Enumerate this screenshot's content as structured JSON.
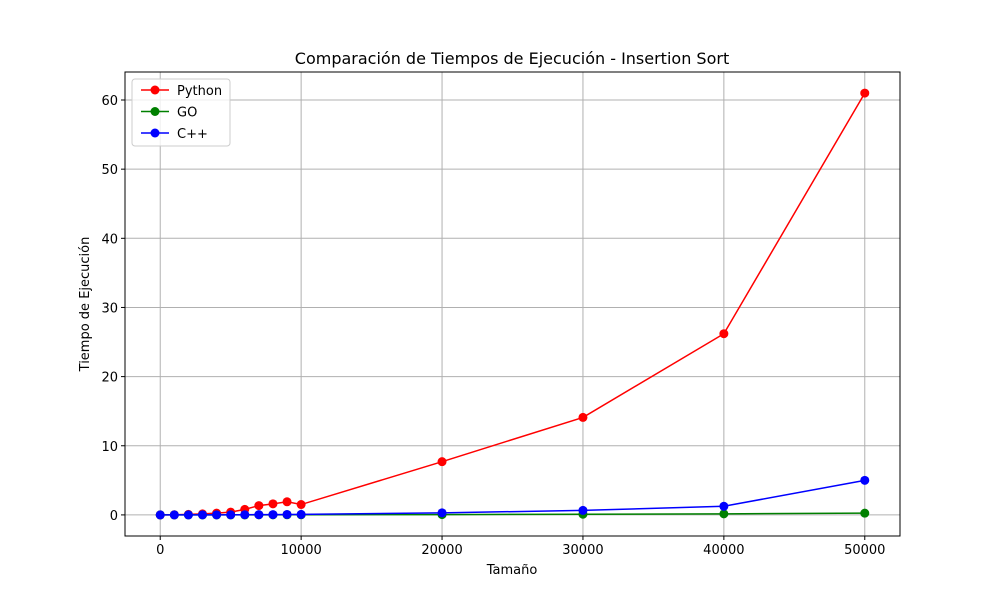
{
  "chart_data": {
    "type": "line",
    "title": "Comparación de Tiempos de Ejecución  - Insertion Sort",
    "xlabel": "Tamaño",
    "ylabel": "Tiempo de Ejecución",
    "xlim": [
      -2500,
      52500
    ],
    "ylim": [
      -3.05,
      64.05
    ],
    "xticks": [
      0,
      10000,
      20000,
      30000,
      40000,
      50000
    ],
    "yticks": [
      0,
      10,
      20,
      30,
      40,
      50,
      60
    ],
    "grid": true,
    "legend_position": "top-left",
    "x": [
      0,
      1000,
      2000,
      3000,
      4000,
      5000,
      6000,
      7000,
      8000,
      9000,
      10000,
      20000,
      30000,
      40000,
      50000
    ],
    "series": [
      {
        "name": "Python",
        "color": "#ff0000",
        "values": [
          0.0,
          0.02,
          0.07,
          0.15,
          0.25,
          0.4,
          0.8,
          1.35,
          1.6,
          1.9,
          1.5,
          7.7,
          14.1,
          26.2,
          61.0
        ]
      },
      {
        "name": "GO",
        "color": "#008000",
        "values": [
          0.0,
          0.0,
          0.0,
          0.0,
          0.0,
          0.0,
          0.0,
          0.01,
          0.01,
          0.02,
          0.02,
          0.05,
          0.1,
          0.15,
          0.25
        ]
      },
      {
        "name": "C++",
        "color": "#0000ff",
        "values": [
          0.0,
          0.0,
          0.0,
          0.01,
          0.01,
          0.02,
          0.03,
          0.04,
          0.05,
          0.06,
          0.07,
          0.3,
          0.65,
          1.25,
          5.0
        ]
      }
    ]
  }
}
